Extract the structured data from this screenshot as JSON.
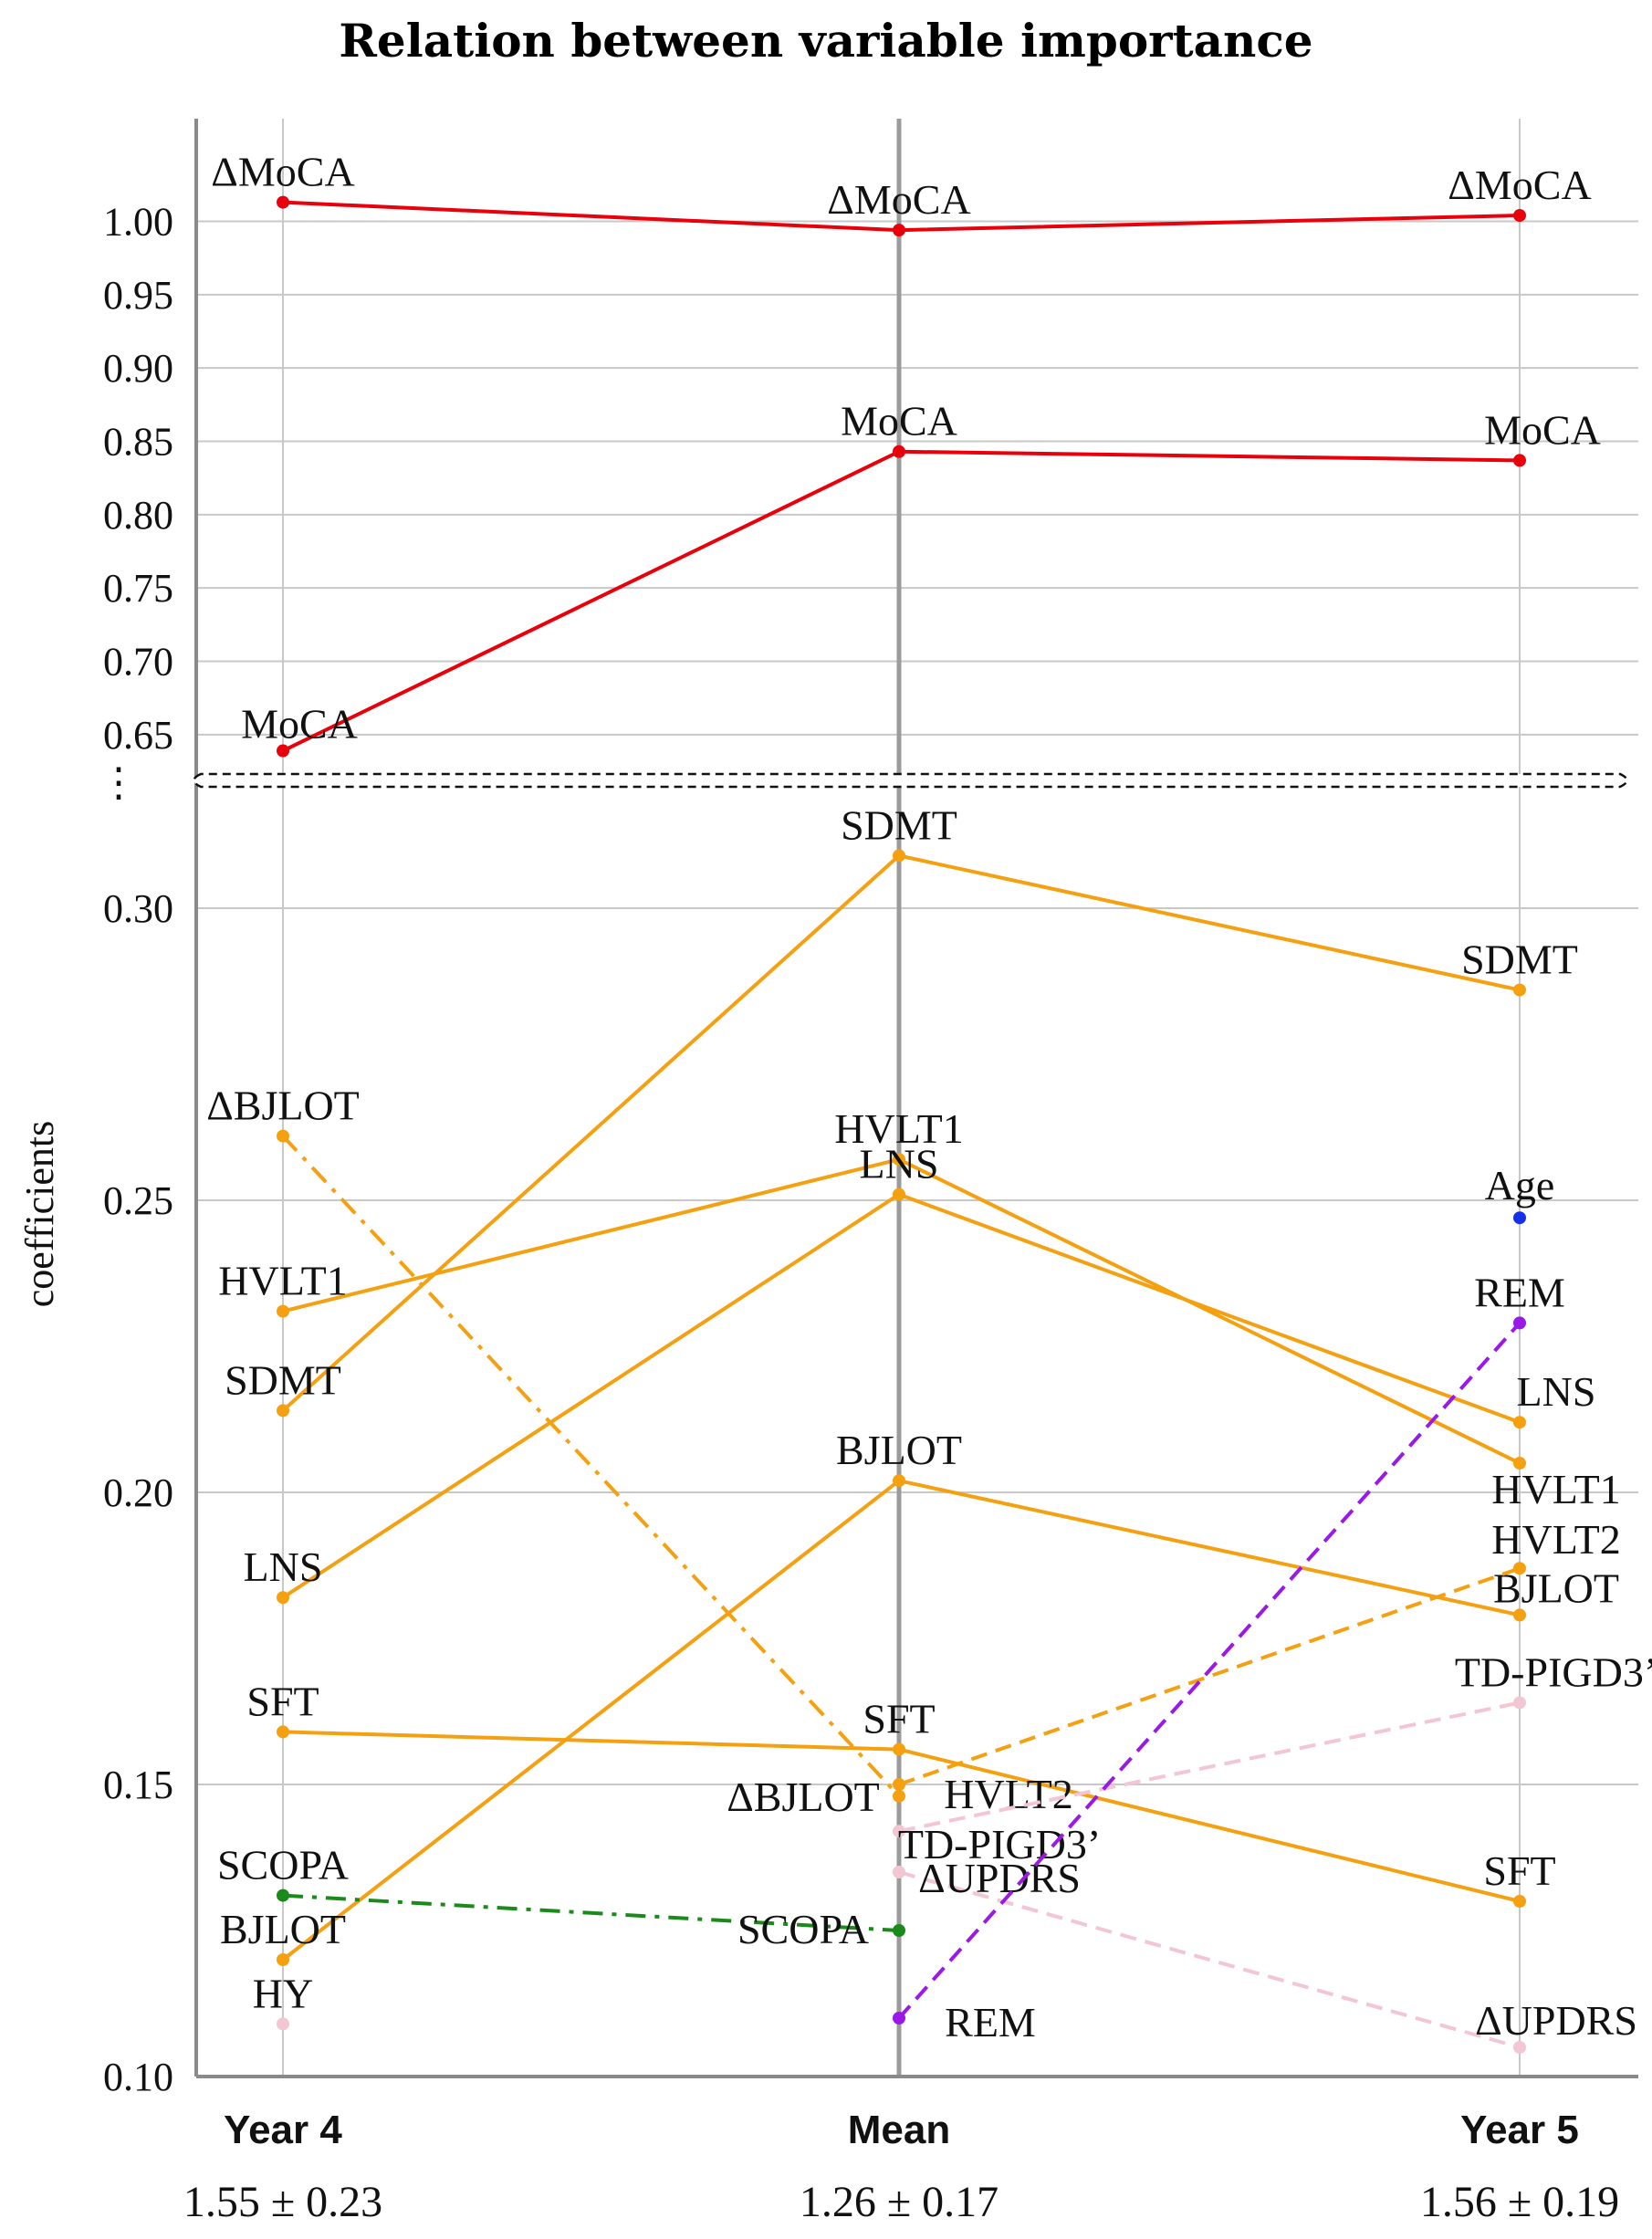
{
  "chart_data": {
    "type": "line",
    "title": "Relation between variable importance",
    "ylabel": "coefficients",
    "xlabel": "",
    "categories": [
      "Year 4",
      "Mean",
      "Year 5"
    ],
    "category_subtitles": [
      "1.55 ± 0.23",
      "1.26 ± 0.17",
      "1.56 ± 0.19"
    ],
    "y_axis_break": true,
    "break_symbol": "⋮",
    "y_ticks_upper": [
      "0.65",
      "0.70",
      "0.75",
      "0.80",
      "0.85",
      "0.90",
      "0.95",
      "1.00"
    ],
    "y_ticks_lower": [
      "0.10",
      "0.15",
      "0.20",
      "0.25",
      "0.30"
    ],
    "ylim_upper": [
      0.63,
      1.07
    ],
    "ylim_lower": [
      0.1,
      0.32
    ],
    "grid": true,
    "legend": "none",
    "series": [
      {
        "color": "#e8000b",
        "style": "solid",
        "labels": [
          "ΔMoCA",
          "ΔMoCA",
          "ΔMoCA"
        ],
        "values": [
          1.013,
          0.994,
          1.004
        ]
      },
      {
        "color": "#e8000b",
        "style": "solid",
        "labels": [
          "MoCA",
          "MoCA",
          "MoCA"
        ],
        "values": [
          0.639,
          0.843,
          0.837
        ]
      },
      {
        "color": "#f5a011",
        "style": "solid",
        "labels": [
          "SDMT",
          "SDMT",
          "SDMT"
        ],
        "values": [
          0.214,
          0.309,
          0.286
        ]
      },
      {
        "color": "#f5a011",
        "style": "solid",
        "labels": [
          "HVLT1",
          "HVLT1",
          "HVLT1"
        ],
        "values": [
          0.231,
          0.257,
          0.205
        ]
      },
      {
        "color": "#f5a011",
        "style": "solid",
        "labels": [
          "LNS",
          "LNS",
          "LNS"
        ],
        "values": [
          0.182,
          0.251,
          0.212
        ]
      },
      {
        "color": "#f5a011",
        "style": "solid",
        "labels": [
          "BJLOT",
          "BJLOT",
          "BJLOT"
        ],
        "values": [
          0.12,
          0.202,
          0.179
        ]
      },
      {
        "color": "#f5a011",
        "style": "solid",
        "labels": [
          "SFT",
          "SFT",
          "SFT"
        ],
        "values": [
          0.159,
          0.156,
          0.13
        ]
      },
      {
        "color": "#f5a011",
        "style": "dashdot",
        "labels": [
          "ΔBJLOT",
          "ΔBJLOT"
        ],
        "x": [
          "Year 4",
          "Mean"
        ],
        "values": [
          0.261,
          0.148
        ]
      },
      {
        "color": "#f5a011",
        "style": "dashed",
        "labels": [
          "HVLT2",
          "HVLT2"
        ],
        "x": [
          "Mean",
          "Year 5"
        ],
        "values": [
          0.15,
          0.187
        ]
      },
      {
        "color": "#1a8a1a",
        "style": "dashdot",
        "labels": [
          "SCOPA",
          "SCOPA"
        ],
        "x": [
          "Year 4",
          "Mean"
        ],
        "values": [
          0.131,
          0.125
        ]
      },
      {
        "color": "#f2c6d3",
        "style": "dashed",
        "labels": [
          "TD-PIGD3’",
          "TD-PIGD3’"
        ],
        "x": [
          "Mean",
          "Year 5"
        ],
        "values": [
          0.142,
          0.164
        ]
      },
      {
        "color": "#f2c6d3",
        "style": "dashed",
        "labels": [
          "ΔUPDRS",
          "ΔUPDRS"
        ],
        "x": [
          "Mean",
          "Year 5"
        ],
        "values": [
          0.135,
          0.105
        ]
      },
      {
        "color": "#9a19e6",
        "style": "dashed",
        "labels": [
          "REM",
          "REM"
        ],
        "x": [
          "Mean",
          "Year 5"
        ],
        "values": [
          0.11,
          0.229
        ]
      },
      {
        "color": "#f2c6d3",
        "style": "none",
        "labels": [
          "HY"
        ],
        "x": [
          "Year 4"
        ],
        "values": [
          0.109
        ]
      },
      {
        "color": "#1530e8",
        "style": "none",
        "labels": [
          "Age"
        ],
        "x": [
          "Year 5"
        ],
        "values": [
          0.247
        ]
      }
    ]
  }
}
